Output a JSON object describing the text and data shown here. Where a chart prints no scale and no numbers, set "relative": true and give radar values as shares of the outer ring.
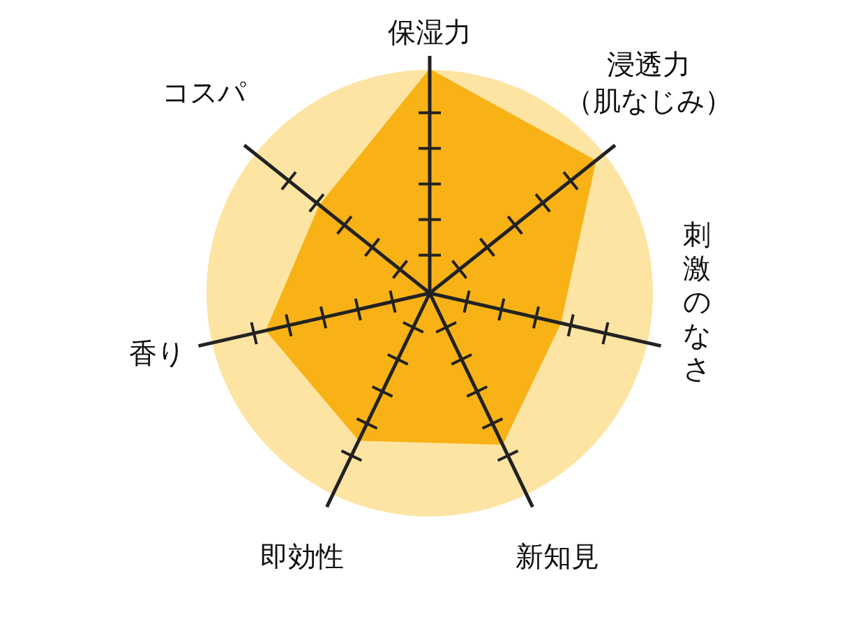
{
  "chart_data": {
    "type": "radar",
    "relative": true,
    "categories": [
      "保湿力",
      "浸透力（肌なじみ）",
      "刺激のなさ",
      "新知見",
      "即効性",
      "香り",
      "コスパ"
    ],
    "series": [
      {
        "color": "#f8b216",
        "values": [
          1,
          0.95,
          0.6,
          0.75,
          0.73,
          0.75,
          0.63
        ]
      }
    ]
  }
}
